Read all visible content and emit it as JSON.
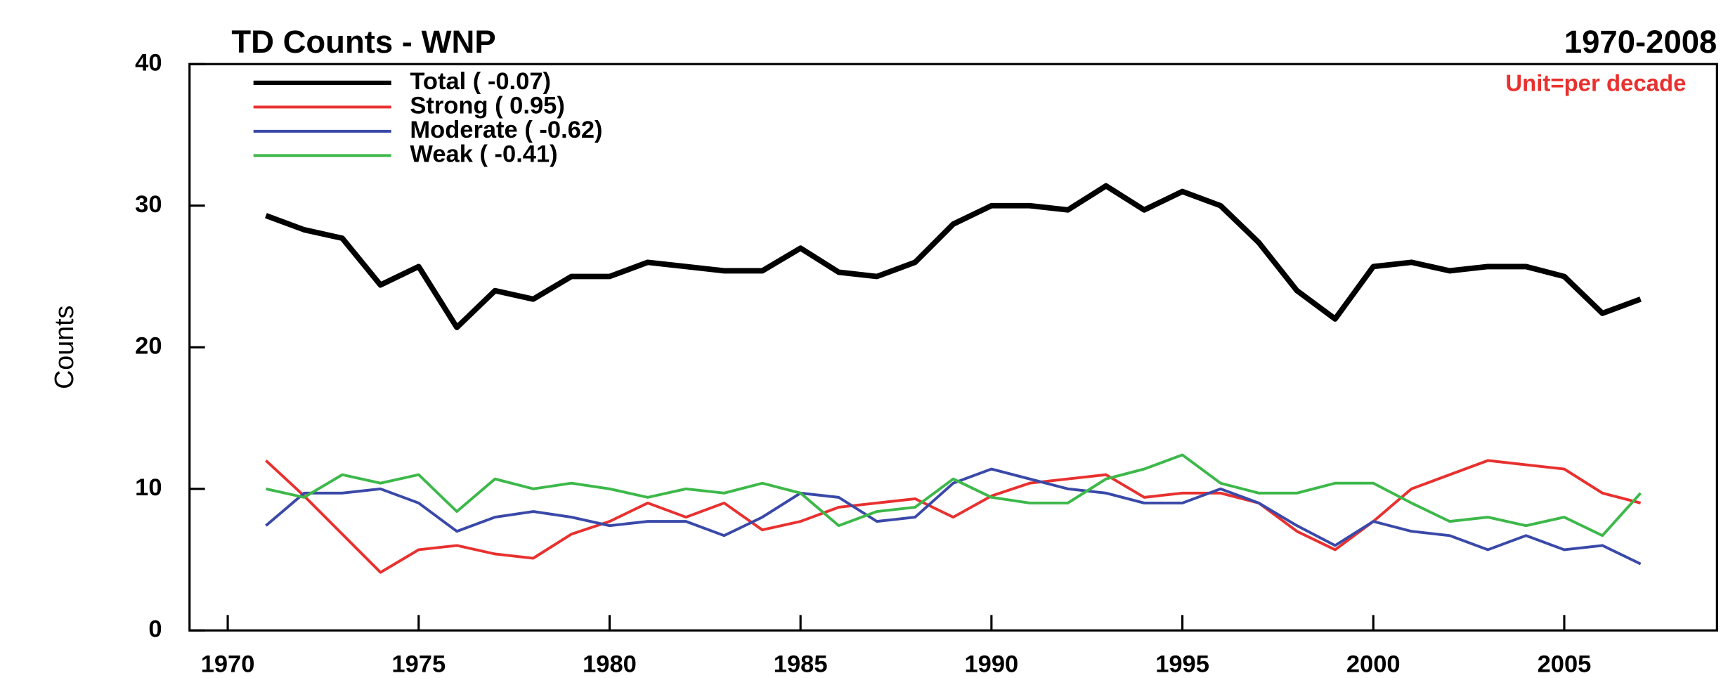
{
  "chart_data": {
    "type": "line",
    "title": "TD Counts - WNP",
    "subtitle": "1970-2008",
    "annotation": "Unit=per decade",
    "annotation_color": "#e8312f",
    "ylabel": "Counts",
    "x": [
      1971,
      1972,
      1973,
      1974,
      1975,
      1976,
      1977,
      1978,
      1979,
      1980,
      1981,
      1982,
      1983,
      1984,
      1985,
      1986,
      1987,
      1988,
      1989,
      1990,
      1991,
      1992,
      1993,
      1994,
      1995,
      1996,
      1997,
      1998,
      1999,
      2000,
      2001,
      2002,
      2003,
      2004,
      2005,
      2006,
      2007
    ],
    "series": [
      {
        "name": "Total ( -0.07)",
        "color": "#000000",
        "values": [
          29.3,
          28.3,
          27.7,
          24.4,
          25.7,
          21.4,
          24,
          23.4,
          25,
          25,
          26,
          25.7,
          25.4,
          25.4,
          27,
          25.3,
          25,
          26,
          28.7,
          30,
          30,
          29.7,
          31.4,
          29.7,
          31,
          30,
          27.4,
          24,
          22,
          25.7,
          26,
          25.4,
          25.7,
          25.7,
          25,
          22.4,
          23.4
        ]
      },
      {
        "name": "Strong (  0.95)",
        "color": "#e8312f",
        "values": [
          12,
          9.5,
          6.8,
          4.1,
          5.7,
          6,
          5.4,
          5.1,
          6.8,
          7.7,
          9,
          8,
          9,
          7.1,
          7.7,
          8.7,
          9,
          9.3,
          8,
          9.5,
          10.4,
          10.7,
          11,
          9.4,
          9.7,
          9.7,
          9,
          7,
          5.7,
          7.7,
          10,
          11,
          12,
          11.7,
          11.4,
          9.7,
          9
        ]
      },
      {
        "name": "Moderate ( -0.62)",
        "color": "#3a49a8",
        "values": [
          7.4,
          9.7,
          9.7,
          10,
          9,
          7,
          8,
          8.4,
          8,
          7.4,
          7.7,
          7.7,
          6.7,
          8,
          9.7,
          9.4,
          7.7,
          8,
          10.4,
          11.4,
          10.7,
          10,
          9.7,
          9,
          9,
          10,
          9,
          7.4,
          6,
          7.7,
          7,
          6.7,
          5.7,
          6.7,
          5.7,
          6,
          4.7
        ]
      },
      {
        "name": "Weak ( -0.41)",
        "color": "#3db84a",
        "values": [
          10,
          9.4,
          11,
          10.4,
          11,
          8.4,
          10.7,
          10,
          10.4,
          10,
          9.4,
          10,
          9.7,
          10.4,
          9.7,
          7.4,
          8.4,
          8.7,
          10.7,
          9.4,
          9,
          9,
          10.7,
          11.4,
          12.4,
          10.4,
          9.7,
          9.7,
          10.4,
          10.4,
          9,
          7.7,
          8,
          7.4,
          8,
          6.7,
          9.7
        ]
      }
    ],
    "xlim": [
      1969,
      2009
    ],
    "xticks": [
      1970,
      1975,
      1980,
      1985,
      1990,
      1995,
      2000,
      2005
    ],
    "ylim": [
      0,
      40
    ],
    "yticks": [
      0,
      10,
      20,
      30,
      40
    ],
    "legend": "upper left"
  }
}
